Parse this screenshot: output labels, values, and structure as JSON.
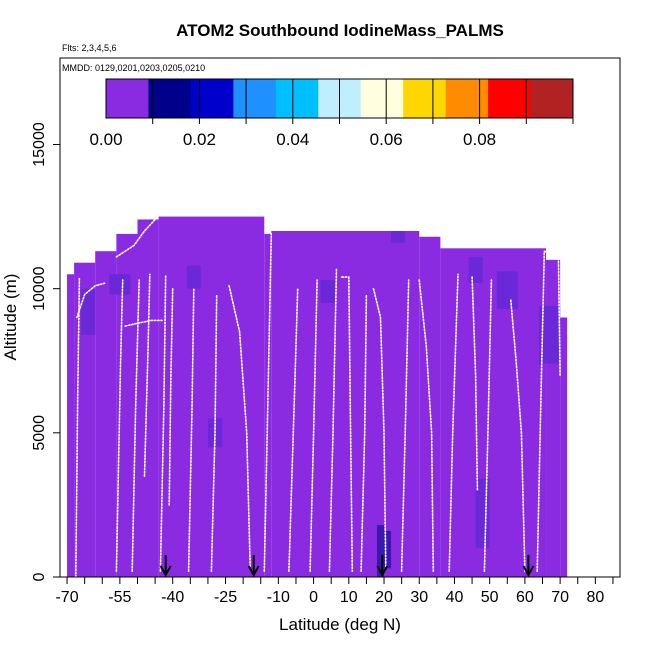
{
  "chart_data": {
    "type": "heatmap",
    "title": "ATOM2 Southbound IodineMass_PALMS",
    "subtitle_flights": "Flts: 2,3,4,5,6",
    "subtitle_dates": "MMDD: 0129,0201,0203,0205,0210",
    "xlabel": "Latitude (deg N)",
    "ylabel": "Altitude (m)",
    "xlim": [
      -72,
      87
    ],
    "ylim": [
      0,
      18000
    ],
    "x_ticks": [
      -70,
      -65,
      -60,
      -55,
      -50,
      -45,
      -40,
      -35,
      -30,
      -25,
      -20,
      -15,
      -10,
      -5,
      0,
      5,
      10,
      15,
      20,
      25,
      30,
      35,
      40,
      45,
      50,
      55,
      60,
      65,
      70,
      75,
      80,
      85
    ],
    "x_tick_labels": [
      "-70",
      "",
      "",
      "-55",
      "",
      "",
      "-40",
      "",
      "",
      "-25",
      "",
      "",
      "-10",
      "",
      "0",
      "",
      "10",
      "",
      "20",
      "",
      "30",
      "",
      "40",
      "",
      "50",
      "",
      "60",
      "",
      "70",
      "",
      "80",
      ""
    ],
    "y_ticks": [
      0,
      5000,
      10000,
      15000
    ],
    "y_tick_labels": [
      "0",
      "5000",
      "10000",
      "15000"
    ],
    "colorbar": {
      "min": 0.0,
      "max": 0.1,
      "tick_values": [
        0.0,
        0.02,
        0.04,
        0.06,
        0.08
      ],
      "tick_labels": [
        "0.00",
        "0.02",
        "0.04",
        "0.06",
        "0.08"
      ],
      "colors": [
        "#8a2be2",
        "#00008b",
        "#0000cd",
        "#1e90ff",
        "#00bfff",
        "#bfefff",
        "#ffffe0",
        "#ffd700",
        "#ff8c00",
        "#ff0000",
        "#b22222"
      ]
    },
    "background_color": "#8a2be2",
    "dark_cell_color": "#6a28d8",
    "anomaly_cell_color": "#3a18b0",
    "flight_track_color": "#ffffff",
    "grid_cells": [
      {
        "lat": -70,
        "alt": 0,
        "w": 2,
        "h": 10500
      },
      {
        "lat": -68,
        "alt": 0,
        "w": 6,
        "h": 10900
      },
      {
        "lat": -62,
        "alt": 0,
        "w": 6,
        "h": 11300
      },
      {
        "lat": -56,
        "alt": 0,
        "w": 6,
        "h": 11900
      },
      {
        "lat": -50,
        "alt": 0,
        "w": 6,
        "h": 12400
      },
      {
        "lat": -44,
        "alt": 0,
        "w": 30,
        "h": 12500
      },
      {
        "lat": -14,
        "alt": 0,
        "w": 2,
        "h": 11900
      },
      {
        "lat": -12,
        "alt": 0,
        "w": 42,
        "h": 12000
      },
      {
        "lat": 30,
        "alt": 0,
        "w": 6,
        "h": 11800
      },
      {
        "lat": 36,
        "alt": 0,
        "w": 30,
        "h": 11400
      },
      {
        "lat": 66,
        "alt": 0,
        "w": 4,
        "h": 11000
      },
      {
        "lat": 70,
        "alt": 0,
        "w": 2,
        "h": 9000
      }
    ],
    "dark_cells": [
      {
        "lat": -66,
        "alt": 8400,
        "w": 4,
        "h": 1600
      },
      {
        "lat": -58,
        "alt": 9800,
        "w": 6,
        "h": 700
      },
      {
        "lat": -36,
        "alt": 10000,
        "w": 4,
        "h": 800
      },
      {
        "lat": 22,
        "alt": 11600,
        "w": 4,
        "h": 400
      },
      {
        "lat": 44,
        "alt": 10200,
        "w": 4,
        "h": 900
      },
      {
        "lat": 52,
        "alt": 9300,
        "w": 6,
        "h": 1300
      },
      {
        "lat": 64,
        "alt": 7400,
        "w": 6,
        "h": 2000
      },
      {
        "lat": 46,
        "alt": 1000,
        "w": 4,
        "h": 2400
      },
      {
        "lat": 2,
        "alt": 9500,
        "w": 4,
        "h": 800
      },
      {
        "lat": -30,
        "alt": 4500,
        "w": 4,
        "h": 1000
      }
    ],
    "anomaly_cells": [
      {
        "lat": 18,
        "alt": 0,
        "w": 2,
        "h": 1800
      },
      {
        "lat": 20,
        "alt": 300,
        "w": 2,
        "h": 1300
      }
    ],
    "flight_tracks": [
      {
        "points": [
          [
            -67.2,
            9000
          ],
          [
            -65,
            9800
          ],
          [
            -62,
            10100
          ],
          [
            -59,
            10200
          ]
        ]
      },
      {
        "points": [
          [
            -67.5,
            0
          ],
          [
            -67,
            6000
          ],
          [
            -66.5,
            10400
          ]
        ]
      },
      {
        "points": [
          [
            -56,
            200
          ],
          [
            -54.8,
            7500
          ],
          [
            -54.2,
            10300
          ]
        ]
      },
      {
        "points": [
          [
            -53.5,
            8700
          ],
          [
            -50,
            8800
          ],
          [
            -46,
            8900
          ],
          [
            -43,
            8900
          ]
        ]
      },
      {
        "points": [
          [
            -56,
            11100
          ],
          [
            -51,
            11500
          ],
          [
            -48,
            12000
          ],
          [
            -45,
            12400
          ]
        ]
      },
      {
        "points": [
          [
            -51.5,
            200
          ],
          [
            -50.5,
            6000
          ],
          [
            -49.5,
            10300
          ]
        ]
      },
      {
        "points": [
          [
            -48,
            3500
          ],
          [
            -47,
            8000
          ],
          [
            -46.5,
            10500
          ]
        ]
      },
      {
        "points": [
          [
            -43.5,
            200
          ],
          [
            -42.5,
            6000
          ],
          [
            -42,
            10500
          ]
        ]
      },
      {
        "points": [
          [
            -41,
            2500
          ],
          [
            -40.5,
            7000
          ],
          [
            -40,
            10000
          ]
        ]
      },
      {
        "points": [
          [
            -35.5,
            200
          ],
          [
            -34.5,
            6000
          ],
          [
            -34,
            10000
          ]
        ]
      },
      {
        "points": [
          [
            -29,
            200
          ],
          [
            -28,
            5000
          ],
          [
            -27.5,
            9800
          ]
        ]
      },
      {
        "points": [
          [
            -24,
            10100
          ],
          [
            -21,
            8500
          ],
          [
            -19,
            5000
          ],
          [
            -18,
            300
          ]
        ]
      },
      {
        "points": [
          [
            -14,
            200
          ],
          [
            -13,
            6000
          ],
          [
            -12,
            11900
          ]
        ]
      },
      {
        "points": [
          [
            -7,
            200
          ],
          [
            -5.5,
            6000
          ],
          [
            -4.5,
            10000
          ]
        ]
      },
      {
        "points": [
          [
            -1,
            200
          ],
          [
            0,
            5000
          ],
          [
            1,
            10300
          ]
        ]
      },
      {
        "points": [
          [
            4.5,
            200
          ],
          [
            5.5,
            5000
          ],
          [
            6.5,
            10700
          ]
        ]
      },
      {
        "points": [
          [
            8,
            10400
          ],
          [
            10,
            10400
          ],
          [
            10.5,
            5000
          ],
          [
            11,
            200
          ]
        ]
      },
      {
        "points": [
          [
            13.5,
            200
          ],
          [
            14.5,
            5000
          ],
          [
            15,
            9800
          ]
        ]
      },
      {
        "points": [
          [
            17,
            10000
          ],
          [
            19,
            9000
          ],
          [
            20,
            5000
          ],
          [
            20.5,
            300
          ]
        ]
      },
      {
        "points": [
          [
            25,
            200
          ],
          [
            26,
            5000
          ],
          [
            27,
            10300
          ]
        ]
      },
      {
        "points": [
          [
            30,
            10300
          ],
          [
            32,
            8000
          ],
          [
            33.5,
            5000
          ],
          [
            34,
            200
          ]
        ]
      },
      {
        "points": [
          [
            38.5,
            200
          ],
          [
            39.5,
            5000
          ],
          [
            41,
            10500
          ]
        ]
      },
      {
        "points": [
          [
            45,
            10400
          ],
          [
            46,
            7000
          ],
          [
            46.5,
            3000
          ]
        ]
      },
      {
        "points": [
          [
            48.5,
            200
          ],
          [
            49.5,
            5000
          ],
          [
            50.5,
            10300
          ]
        ]
      },
      {
        "points": [
          [
            56,
            9600
          ],
          [
            57.5,
            7500
          ],
          [
            59,
            5000
          ],
          [
            60,
            200
          ]
        ]
      },
      {
        "points": [
          [
            63.5,
            200
          ],
          [
            64.5,
            6000
          ],
          [
            65.5,
            11300
          ]
        ]
      },
      {
        "points": [
          [
            65.5,
            11300
          ],
          [
            68,
            11200
          ],
          [
            69.5,
            11100
          ],
          [
            70,
            7000
          ]
        ]
      }
    ],
    "arrows_lat": [
      -42,
      -17,
      19.5,
      61
    ]
  }
}
